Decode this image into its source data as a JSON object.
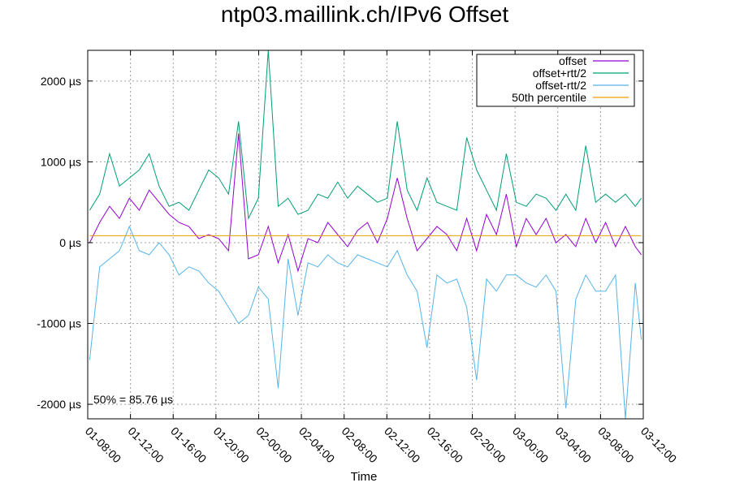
{
  "chart_data": {
    "type": "line",
    "title": "ntp03.maillink.ch/IPv6 Offset",
    "xlabel": "Time",
    "ylabel": "",
    "x_range_hours": [
      0,
      28
    ],
    "ylim": [
      -2180,
      2380
    ],
    "x_ticks": [
      "01-08:00",
      "01-12:00",
      "01-16:00",
      "01-20:00",
      "02-00:00",
      "02-04:00",
      "02-08:00",
      "02-12:00",
      "02-16:00",
      "02-20:00",
      "03-00:00",
      "03-04:00",
      "03-08:00",
      "03-12:00"
    ],
    "y_ticks": [
      {
        "value": 2000,
        "label": "2000 µs"
      },
      {
        "value": 1000,
        "label": "1000 µs"
      },
      {
        "value": 0,
        "label": "0 µs"
      },
      {
        "value": -1000,
        "label": "-1000 µs"
      },
      {
        "value": -2000,
        "label": "-2000 µs"
      }
    ],
    "grid": true,
    "legend_position": "top-right",
    "annotation": "50% = 85.76 µs",
    "percentile_50": 85.76,
    "series": [
      {
        "name": "offset",
        "color": "#9400d3",
        "x": [
          0.1,
          0.6,
          1.1,
          1.6,
          2.1,
          2.6,
          3.1,
          3.6,
          4.1,
          4.6,
          5.1,
          5.6,
          6.1,
          6.6,
          7.1,
          7.6,
          8.1,
          8.6,
          9.1,
          9.6,
          10.1,
          10.6,
          11.1,
          11.6,
          12.1,
          12.6,
          13.1,
          13.6,
          14.1,
          14.6,
          15.1,
          15.6,
          16.1,
          16.6,
          17.1,
          17.6,
          18.1,
          18.6,
          19.1,
          19.6,
          20.1,
          20.6,
          21.1,
          21.6,
          22.1,
          22.6,
          23.1,
          23.6,
          24.1,
          24.6,
          25.1,
          25.6,
          26.1,
          26.6,
          27.1,
          27.6,
          27.9
        ],
        "y": [
          0,
          250,
          450,
          300,
          550,
          400,
          650,
          500,
          350,
          250,
          200,
          50,
          100,
          50,
          -100,
          1350,
          -200,
          -150,
          200,
          -250,
          100,
          -350,
          50,
          0,
          250,
          100,
          -50,
          150,
          250,
          0,
          300,
          800,
          300,
          -100,
          50,
          200,
          100,
          -100,
          300,
          -100,
          350,
          100,
          600,
          -50,
          300,
          100,
          300,
          0,
          100,
          -50,
          300,
          0,
          250,
          -50,
          200,
          -50,
          -150
        ]
      },
      {
        "name": "offset+rtt/2",
        "color": "#009e73",
        "x": [
          0.1,
          0.6,
          1.1,
          1.6,
          2.1,
          2.6,
          3.1,
          3.6,
          4.1,
          4.6,
          5.1,
          5.6,
          6.1,
          6.6,
          7.1,
          7.6,
          8.1,
          8.6,
          9.1,
          9.6,
          10.1,
          10.6,
          11.1,
          11.6,
          12.1,
          12.6,
          13.1,
          13.6,
          14.1,
          14.6,
          15.1,
          15.6,
          16.1,
          16.6,
          17.1,
          17.6,
          18.1,
          18.6,
          19.1,
          19.6,
          20.1,
          20.6,
          21.1,
          21.6,
          22.1,
          22.6,
          23.1,
          23.6,
          24.1,
          24.6,
          25.1,
          25.6,
          26.1,
          26.6,
          27.1,
          27.6,
          27.9
        ],
        "y": [
          400,
          600,
          1100,
          700,
          800,
          900,
          1100,
          700,
          450,
          500,
          400,
          650,
          900,
          800,
          600,
          1500,
          300,
          550,
          2380,
          450,
          550,
          350,
          400,
          600,
          550,
          750,
          550,
          700,
          600,
          500,
          550,
          1500,
          650,
          400,
          800,
          500,
          450,
          400,
          1300,
          900,
          650,
          400,
          1100,
          500,
          450,
          600,
          550,
          400,
          600,
          400,
          1200,
          500,
          600,
          500,
          600,
          450,
          550
        ]
      },
      {
        "name": "offset-rtt/2",
        "color": "#56b4e9",
        "x": [
          0.1,
          0.6,
          1.1,
          1.6,
          2.1,
          2.6,
          3.1,
          3.6,
          4.1,
          4.6,
          5.1,
          5.6,
          6.1,
          6.6,
          7.1,
          7.6,
          8.1,
          8.6,
          9.1,
          9.6,
          10.1,
          10.6,
          11.1,
          11.6,
          12.1,
          12.6,
          13.1,
          13.6,
          14.1,
          14.6,
          15.1,
          15.6,
          16.1,
          16.6,
          17.1,
          17.6,
          18.1,
          18.6,
          19.1,
          19.6,
          20.1,
          20.6,
          21.1,
          21.6,
          22.1,
          22.6,
          23.1,
          23.6,
          24.1,
          24.6,
          25.1,
          25.6,
          26.1,
          26.6,
          27.1,
          27.6,
          27.9
        ],
        "y": [
          -1450,
          -300,
          -200,
          -100,
          200,
          -100,
          -150,
          0,
          -150,
          -400,
          -300,
          -350,
          -500,
          -600,
          -800,
          -1000,
          -900,
          -550,
          -700,
          -1800,
          -200,
          -900,
          -250,
          -300,
          -150,
          -250,
          -300,
          -150,
          -200,
          -250,
          -300,
          -100,
          -400,
          -600,
          -1300,
          -400,
          -500,
          -450,
          -800,
          -1700,
          -450,
          -600,
          -400,
          -400,
          -500,
          -550,
          -400,
          -600,
          -2050,
          -700,
          -400,
          -600,
          -600,
          -400,
          -2180,
          -500,
          -1200
        ]
      },
      {
        "name": "50th percentile",
        "color": "#e69f00",
        "x": [
          0.1,
          27.9
        ],
        "y": [
          85.76,
          85.76
        ]
      }
    ]
  }
}
